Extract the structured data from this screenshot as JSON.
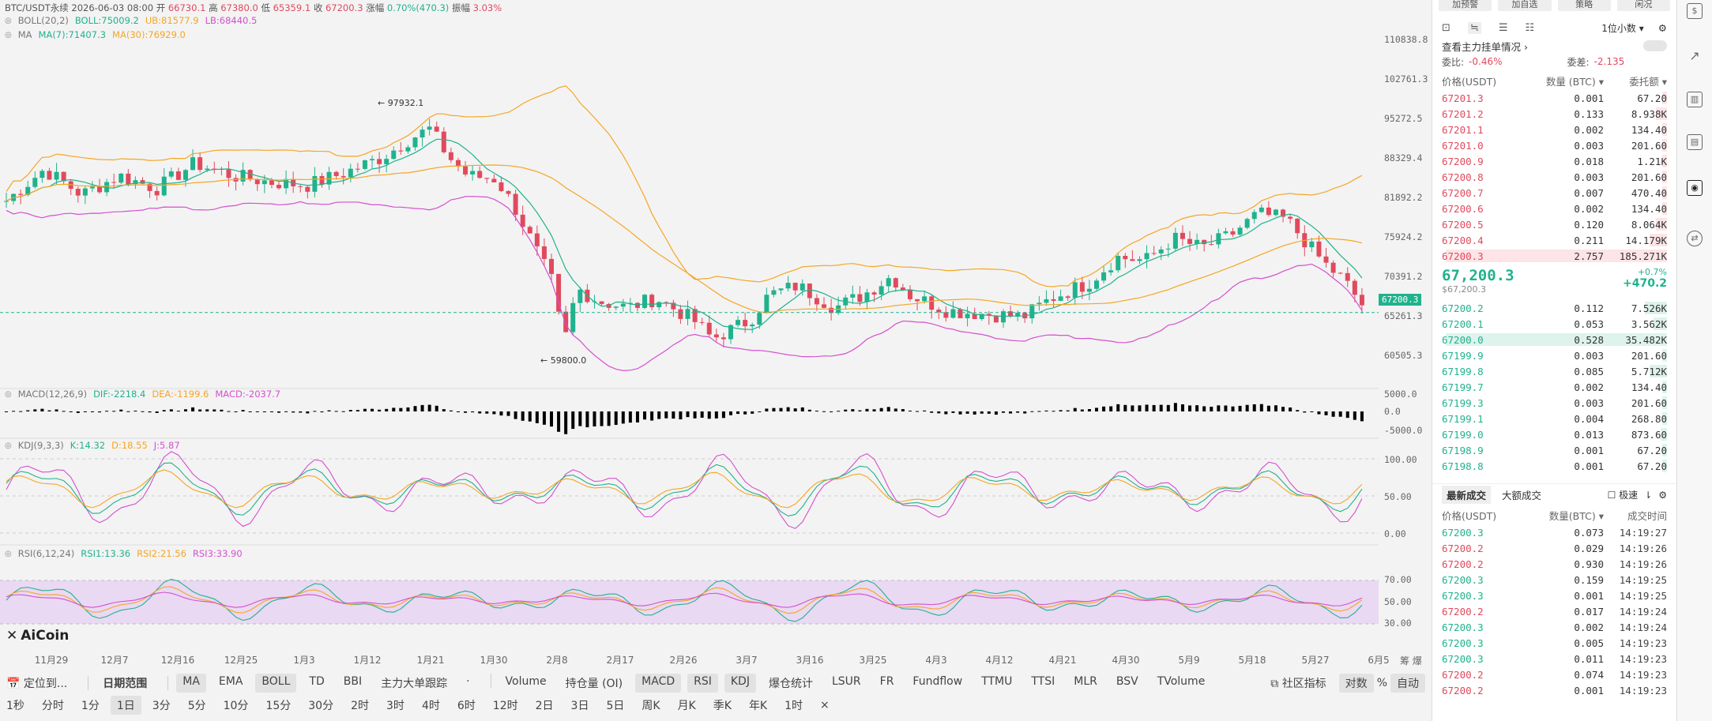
{
  "header": {
    "symbol": "BTC/USDT永续",
    "date": "2026-06-03 08:00",
    "open_label": "开",
    "open": "66730.1",
    "high_label": "高",
    "high": "67380.0",
    "low_label": "低",
    "low": "65359.1",
    "close_label": "收",
    "close": "67200.3",
    "change_label": "涨幅",
    "change": "0.70%(470.3)",
    "amp_label": "振幅",
    "amp": "3.03%"
  },
  "indicators": {
    "boll": {
      "name": "BOLL(20,2)",
      "mid": "BOLL:75009.2",
      "ub": "UB:81577.9",
      "lb": "LB:68440.5"
    },
    "ma": {
      "name": "MA",
      "ma7": "MA(7):71407.3",
      "ma30": "MA(30):76929.0"
    },
    "macd": {
      "name": "MACD(12,26,9)",
      "dif": "DIF:-2218.4",
      "dea": "DEA:-1199.6",
      "macd": "MACD:-2037.7"
    },
    "kdj": {
      "name": "KDJ(9,3,3)",
      "k": "K:14.32",
      "d": "D:18.55",
      "j": "J:5.87"
    },
    "rsi": {
      "name": "RSI(6,12,24)",
      "r1": "RSI1:13.36",
      "r2": "RSI2:21.56",
      "r3": "RSI3:33.90"
    }
  },
  "annotations": {
    "high": "← 97932.1",
    "low": "← 59800.0"
  },
  "y_axis_main": [
    "110838.8",
    "102761.3",
    "95272.5",
    "88329.4",
    "81892.2",
    "75924.2",
    "70391.2",
    "65261.3",
    "60505.3"
  ],
  "y_axis_macd": [
    "5000.0",
    "0.0",
    "-5000.0"
  ],
  "y_axis_kdj": [
    "100.00",
    "50.00",
    "0.00"
  ],
  "y_axis_rsi": [
    "70.00",
    "50.00",
    "30.00"
  ],
  "current_price_tag": "67200.3",
  "x_axis": [
    "11月29",
    "12月7",
    "12月16",
    "12月25",
    "1月3",
    "1月12",
    "1月21",
    "1月30",
    "2月8",
    "2月17",
    "2月26",
    "3月7",
    "3月16",
    "3月25",
    "4月3",
    "4月12",
    "4月21",
    "4月30",
    "5月9",
    "5月18",
    "5月27",
    "6月5"
  ],
  "axis_corner": {
    "a": "筹",
    "b": "爆"
  },
  "logo": "AiCoin",
  "toolbar1": {
    "locate": "定位到...",
    "range": "日期范围",
    "items": [
      "MA",
      "EMA",
      "BOLL",
      "TD",
      "BBI",
      "主力大单跟踪",
      "·",
      "Volume",
      "持仓量 (OI)",
      "MACD",
      "RSI",
      "KDJ",
      "爆仓统计",
      "LSUR",
      "FR",
      "Fundflow",
      "TTMU",
      "TTSI",
      "MLR",
      "BSV",
      "TVolume"
    ],
    "community": "社区指标",
    "log": "对数",
    "pct": "%",
    "auto": "自动"
  },
  "toolbar2": [
    "1秒",
    "分时",
    "1分",
    "1日",
    "3分",
    "5分",
    "10分",
    "15分",
    "30分",
    "2时",
    "3时",
    "4时",
    "6时",
    "12时",
    "2日",
    "3日",
    "5日",
    "周K",
    "月K",
    "季K",
    "年K",
    "1时",
    "×"
  ],
  "panel": {
    "top_buttons": [
      "加预警",
      "加自选",
      "策略",
      "闲况"
    ],
    "decimal": "1位小数",
    "main_order_label": "查看主力挂单情况",
    "ratio_label": "委比:",
    "ratio": "-0.46%",
    "diff_label": "委差:",
    "diff": "-2.135",
    "col_price": "价格(USDT)",
    "col_qty": "数量 (BTC)",
    "col_total": "委托额",
    "asks": [
      {
        "p": "67201.3",
        "q": "0.001",
        "t": "67.20",
        "w": 0.02
      },
      {
        "p": "67201.2",
        "q": "0.133",
        "t": "8.938K",
        "w": 0.05
      },
      {
        "p": "67201.1",
        "q": "0.002",
        "t": "134.40",
        "w": 0.02
      },
      {
        "p": "67201.0",
        "q": "0.003",
        "t": "201.60",
        "w": 0.02
      },
      {
        "p": "67200.9",
        "q": "0.018",
        "t": "1.21K",
        "w": 0.02
      },
      {
        "p": "67200.8",
        "q": "0.003",
        "t": "201.60",
        "w": 0.02
      },
      {
        "p": "67200.7",
        "q": "0.007",
        "t": "470.40",
        "w": 0.02
      },
      {
        "p": "67200.6",
        "q": "0.002",
        "t": "134.40",
        "w": 0.02
      },
      {
        "p": "67200.5",
        "q": "0.120",
        "t": "8.064K",
        "w": 0.05
      },
      {
        "p": "67200.4",
        "q": "0.211",
        "t": "14.179K",
        "w": 0.08
      },
      {
        "p": "67200.3",
        "q": "2.757",
        "t": "185.271K",
        "w": 1.0
      }
    ],
    "last_price": "67,200.3",
    "last_price_usd": "$67,200.3",
    "last_change_pct": "+0.7%",
    "last_change": "+470.2",
    "bids": [
      {
        "p": "67200.2",
        "q": "0.112",
        "t": "7.526K",
        "w": 0.1
      },
      {
        "p": "67200.1",
        "q": "0.053",
        "t": "3.562K",
        "w": 0.06
      },
      {
        "p": "67200.0",
        "q": "0.528",
        "t": "35.482K",
        "w": 1.0
      },
      {
        "p": "67199.9",
        "q": "0.003",
        "t": "201.60",
        "w": 0.02
      },
      {
        "p": "67199.8",
        "q": "0.085",
        "t": "5.712K",
        "w": 0.08
      },
      {
        "p": "67199.7",
        "q": "0.002",
        "t": "134.40",
        "w": 0.02
      },
      {
        "p": "67199.3",
        "q": "0.003",
        "t": "201.60",
        "w": 0.02
      },
      {
        "p": "67199.1",
        "q": "0.004",
        "t": "268.80",
        "w": 0.02
      },
      {
        "p": "67199.0",
        "q": "0.013",
        "t": "873.60",
        "w": 0.03
      },
      {
        "p": "67198.9",
        "q": "0.001",
        "t": "67.20",
        "w": 0.02
      },
      {
        "p": "67198.8",
        "q": "0.001",
        "t": "67.20",
        "w": 0.02
      }
    ],
    "trades_tab1": "最新成交",
    "trades_tab2": "大额成交",
    "fast_label": "极速",
    "trade_col_price": "价格(USDT)",
    "trade_col_qty": "数量(BTC)",
    "trade_col_time": "成交时间",
    "trades": [
      {
        "p": "67200.3",
        "q": "0.073",
        "t": "14:19:27",
        "s": "up"
      },
      {
        "p": "67200.2",
        "q": "0.029",
        "t": "14:19:26",
        "s": "dn"
      },
      {
        "p": "67200.2",
        "q": "0.930",
        "t": "14:19:26",
        "s": "dn"
      },
      {
        "p": "67200.3",
        "q": "0.159",
        "t": "14:19:25",
        "s": "up"
      },
      {
        "p": "67200.3",
        "q": "0.001",
        "t": "14:19:25",
        "s": "up"
      },
      {
        "p": "67200.2",
        "q": "0.017",
        "t": "14:19:24",
        "s": "dn"
      },
      {
        "p": "67200.3",
        "q": "0.002",
        "t": "14:19:24",
        "s": "up"
      },
      {
        "p": "67200.3",
        "q": "0.005",
        "t": "14:19:23",
        "s": "up"
      },
      {
        "p": "67200.3",
        "q": "0.011",
        "t": "14:19:23",
        "s": "up"
      },
      {
        "p": "67200.2",
        "q": "0.074",
        "t": "14:19:23",
        "s": "dn"
      },
      {
        "p": "67200.2",
        "q": "0.001",
        "t": "14:19:23",
        "s": "dn"
      }
    ]
  },
  "colors": {
    "up": "#20b28d",
    "down": "#e04a5d",
    "boll_up": "#f5a623",
    "boll_lb": "#d64fcf",
    "ma7": "#20b28d",
    "ma30": "#f5a623"
  }
}
